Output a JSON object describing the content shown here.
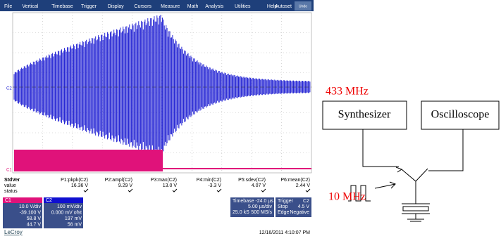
{
  "menu": {
    "items": [
      "File",
      "Vertical",
      "Timebase",
      "Trigger",
      "Display",
      "Cursors",
      "Measure",
      "Math",
      "Analysis",
      "Utilities",
      "Help"
    ],
    "autoset": "Autoset",
    "undo": "Undo"
  },
  "scope": {
    "markers": [
      "C2",
      "C1"
    ]
  },
  "measure": {
    "row_labels": [
      "StdVer",
      "value",
      "status"
    ],
    "columns": [
      {
        "name": "P1:pkpk(C2)",
        "value": "16.36 V"
      },
      {
        "name": "P2:ampl(C2)",
        "value": "9.29 V"
      },
      {
        "name": "P3:max(C2)",
        "value": "13.0 V"
      },
      {
        "name": "P4:min(C2)",
        "value": "-3.3 V"
      },
      {
        "name": "P5:sdev(C2)",
        "value": "4.07 V"
      },
      {
        "name": "P6:mean(C2)",
        "value": "2.44 V"
      }
    ]
  },
  "channels": [
    {
      "label": "C1",
      "lines": [
        "10.0 V/div",
        "-39.100 V",
        "58.8 V",
        "44.7 V"
      ]
    },
    {
      "label": "C2",
      "lines": [
        "100 mV/div",
        "0.000 mV ofst",
        "197 mV",
        "56 mV"
      ]
    }
  ],
  "timebase": {
    "title": "Timebase -24.0 µs",
    "lines": [
      "5.00 µs/div",
      "25.0 kS",
      "500 MS/s"
    ]
  },
  "trigger": {
    "title": "Trigger",
    "channel": "C2",
    "lines": [
      "Stop",
      "4.5 V",
      "Edge",
      "Negative"
    ]
  },
  "footer": {
    "date": "12/16/2011 4:10:07 PM",
    "brand": "LeCroy"
  },
  "diagram": {
    "top_freq": "433 MHz",
    "nodes": [
      "Synthesizer",
      "Oscilloscope"
    ],
    "bottom_freq": "10 MHz"
  }
}
